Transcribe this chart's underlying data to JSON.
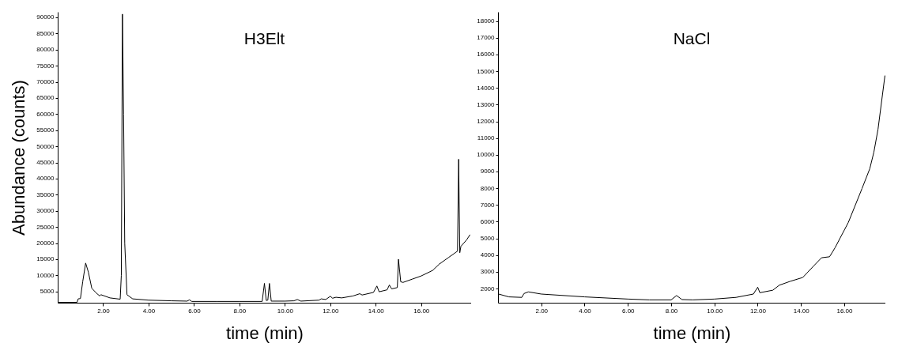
{
  "chart_data": [
    {
      "type": "line",
      "title": "H3Elt",
      "xlabel": "time (min)",
      "ylabel": "Abundance (counts)",
      "color": "#000000",
      "x": [
        0.03,
        0.85,
        0.9,
        1.0,
        1.1,
        1.23,
        1.35,
        1.5,
        1.7,
        1.85,
        1.9,
        2.3,
        2.75,
        2.8,
        2.85,
        2.9,
        2.95,
        3.05,
        3.3,
        4.0,
        5.0,
        5.7,
        5.8,
        5.9,
        7.0,
        8.0,
        9.0,
        9.1,
        9.18,
        9.25,
        9.32,
        9.4,
        10.0,
        10.4,
        10.55,
        10.7,
        11.5,
        11.6,
        11.8,
        12.0,
        12.1,
        12.25,
        12.5,
        13.0,
        13.3,
        13.4,
        13.9,
        14.05,
        14.15,
        14.5,
        14.6,
        14.7,
        14.95,
        15.0,
        15.1,
        15.2,
        15.6,
        16.0,
        16.5,
        16.8,
        17.2,
        17.5,
        17.6,
        17.65,
        17.7,
        17.75,
        18.0,
        18.15
      ],
      "values": [
        1600,
        1600,
        2700,
        2800,
        8000,
        13800,
        11000,
        6000,
        4500,
        3600,
        4000,
        3000,
        2600,
        10000,
        91000,
        60000,
        20000,
        4000,
        2700,
        2300,
        2100,
        2000,
        2400,
        1900,
        1900,
        1900,
        1900,
        7500,
        2200,
        2300,
        7500,
        2000,
        2000,
        2100,
        2500,
        2000,
        2300,
        2700,
        2500,
        3500,
        2900,
        3200,
        3000,
        3600,
        4300,
        3900,
        4700,
        6700,
        4900,
        5500,
        7000,
        5800,
        6200,
        15000,
        8000,
        7800,
        8800,
        9800,
        11500,
        13500,
        15500,
        17000,
        17500,
        46000,
        17000,
        19000,
        21000,
        22600
      ],
      "xlim": [
        0,
        18.2
      ],
      "ylim": [
        1500,
        91700
      ],
      "xticks": [
        {
          "value": 2,
          "label": "2.00"
        },
        {
          "value": 4,
          "label": "4.00"
        },
        {
          "value": 6,
          "label": "6.00"
        },
        {
          "value": 8,
          "label": "8.00"
        },
        {
          "value": 10,
          "label": "10.00"
        },
        {
          "value": 12,
          "label": "12.00"
        },
        {
          "value": 14,
          "label": "14.00"
        },
        {
          "value": 16,
          "label": "16.00"
        }
      ],
      "yticks": [
        5000,
        10000,
        15000,
        20000,
        25000,
        30000,
        35000,
        40000,
        45000,
        50000,
        55000,
        60000,
        65000,
        70000,
        75000,
        80000,
        85000,
        90000
      ]
    },
    {
      "type": "line",
      "title": "NaCl",
      "xlabel": "time (min)",
      "color": "#000000",
      "x": [
        0.03,
        0.5,
        1.1,
        1.2,
        1.4,
        2.0,
        4.0,
        6.0,
        7.0,
        8.0,
        8.25,
        8.5,
        9.0,
        10.0,
        11.0,
        11.8,
        12.0,
        12.1,
        12.7,
        13.0,
        13.5,
        14.08,
        14.57,
        14.95,
        15.32,
        15.57,
        16.19,
        16.82,
        17.18,
        17.37,
        17.56,
        17.88
      ],
      "values": [
        1670,
        1500,
        1470,
        1700,
        1800,
        1670,
        1500,
        1370,
        1320,
        1320,
        1580,
        1340,
        1320,
        1370,
        1470,
        1670,
        2080,
        1750,
        1900,
        2200,
        2430,
        2660,
        3330,
        3840,
        3900,
        4430,
        5960,
        7980,
        9170,
        10170,
        11530,
        14740
      ],
      "xlim": [
        0,
        17.9
      ],
      "ylim": [
        1150,
        18550
      ],
      "xticks": [
        {
          "value": 2,
          "label": "2.00"
        },
        {
          "value": 4,
          "label": "4.00"
        },
        {
          "value": 6,
          "label": "6.00"
        },
        {
          "value": 8,
          "label": "8.00"
        },
        {
          "value": 10,
          "label": "10.00"
        },
        {
          "value": 12,
          "label": "12.00"
        },
        {
          "value": 14,
          "label": "14.00"
        },
        {
          "value": 16,
          "label": "16.00"
        }
      ],
      "yticks": [
        2000,
        3000,
        4000,
        5000,
        6000,
        7000,
        8000,
        9000,
        10000,
        11000,
        12000,
        13000,
        14000,
        15000,
        16000,
        17000,
        18000
      ]
    }
  ]
}
